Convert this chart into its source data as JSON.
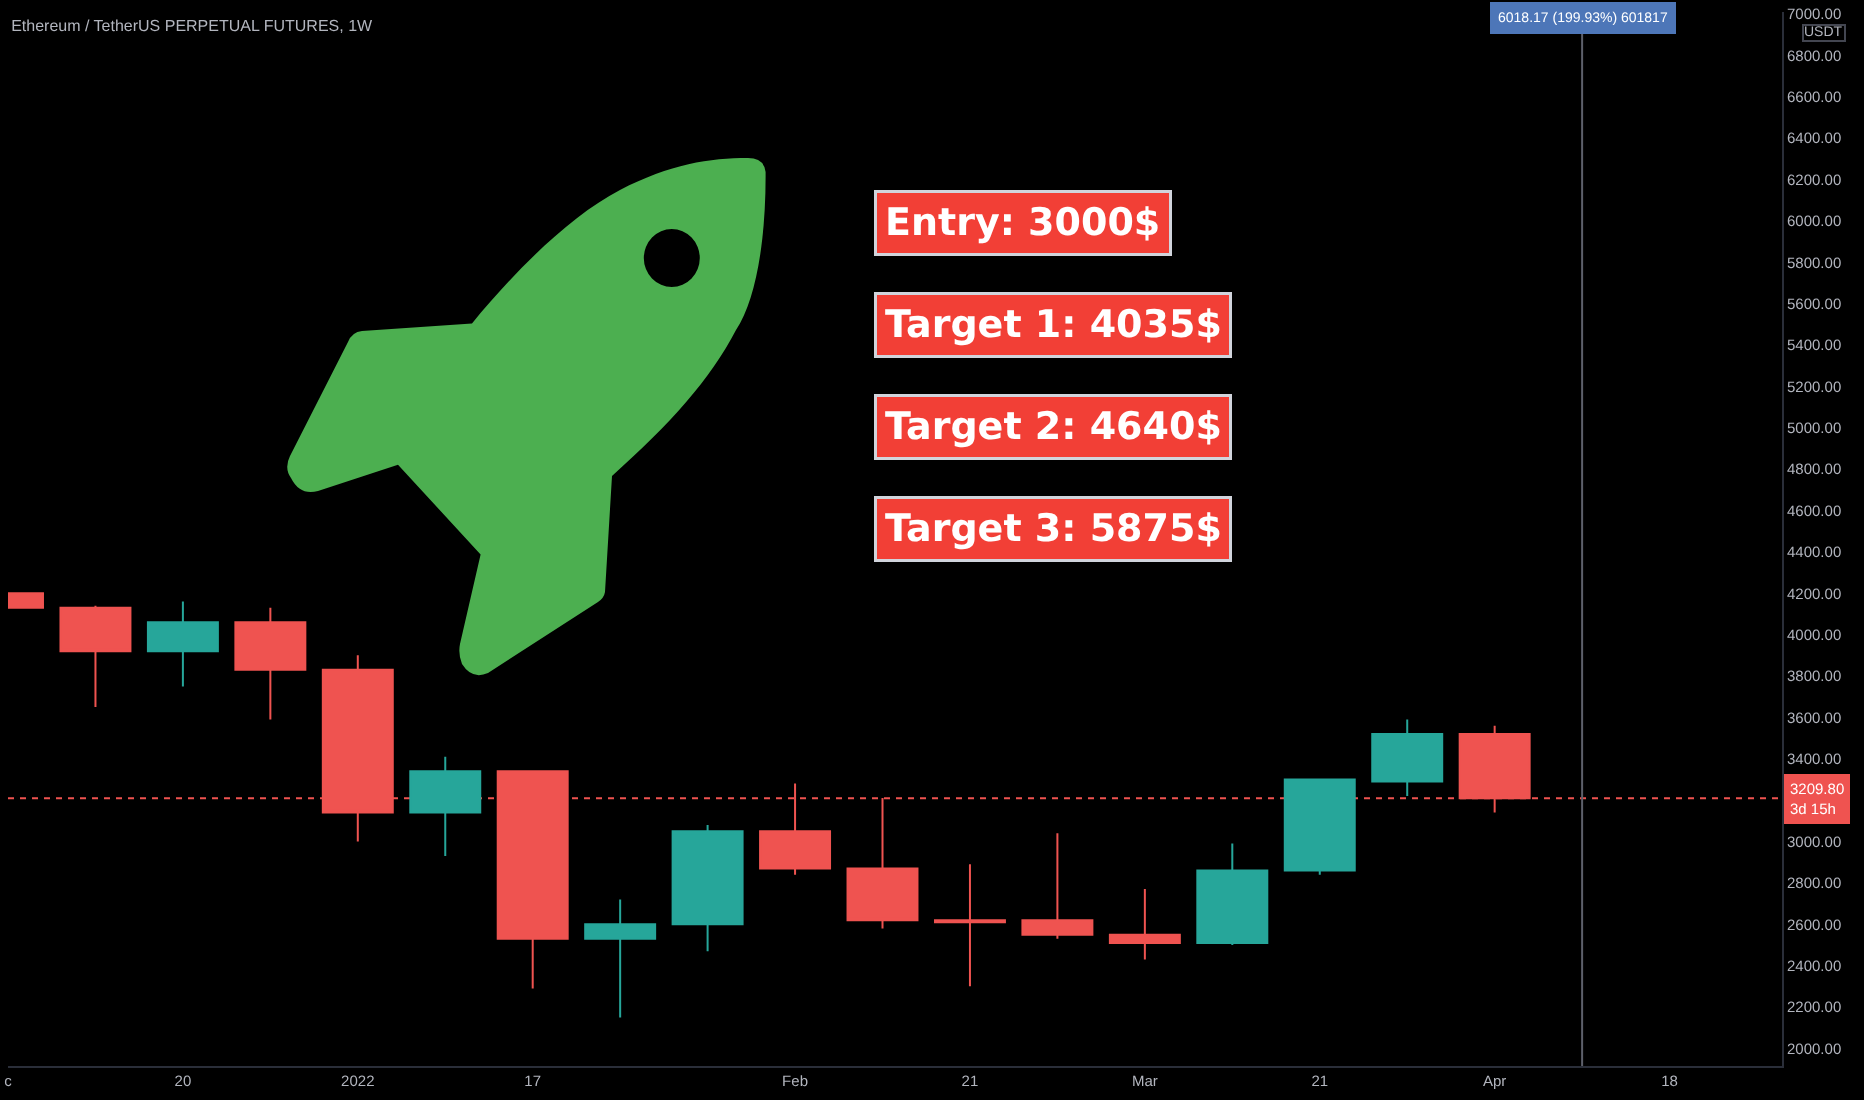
{
  "chart_data": {
    "type": "candlestick",
    "title": "Ethereum / TetherUS PERPETUAL FUTURES, 1W",
    "ylabel": "USDT",
    "x": [
      "2021-12-06",
      "2021-12-13",
      "2021-12-20",
      "2021-12-27",
      "2022-01-03",
      "2022-01-10",
      "2022-01-17",
      "2022-01-24",
      "2022-01-31",
      "2022-02-07",
      "2022-02-14",
      "2022-02-21",
      "2022-02-28",
      "2022-03-07",
      "2022-03-14",
      "2022-03-21",
      "2022-03-28",
      "2022-04-04"
    ],
    "ohlc": [
      [
        4200,
        4200,
        4130,
        4130
      ],
      [
        4130,
        4140,
        3650,
        3920
      ],
      [
        3920,
        4160,
        3750,
        4060
      ],
      [
        4060,
        4130,
        3590,
        3830
      ],
      [
        3830,
        3900,
        3000,
        3140
      ],
      [
        3140,
        3410,
        2930,
        3340
      ],
      [
        3340,
        3340,
        2290,
        2530
      ],
      [
        2530,
        2720,
        2150,
        2600
      ],
      [
        2600,
        3080,
        2470,
        3050
      ],
      [
        3050,
        3280,
        2840,
        2870
      ],
      [
        2870,
        3210,
        2580,
        2620
      ],
      [
        2620,
        2890,
        2300,
        2610
      ],
      [
        2620,
        3040,
        2530,
        2550
      ],
      [
        2550,
        2770,
        2430,
        2510
      ],
      [
        2510,
        2990,
        2500,
        2860
      ],
      [
        2860,
        3300,
        2840,
        3300
      ],
      [
        3290,
        3590,
        3220,
        3520
      ],
      [
        3520,
        3560,
        3140,
        3209.8
      ]
    ],
    "colors": [
      "#ef5350",
      "#ef5350",
      "#26a69a",
      "#ef5350",
      "#ef5350",
      "#26a69a",
      "#ef5350",
      "#26a69a",
      "#26a69a",
      "#ef5350",
      "#ef5350",
      "#ef5350",
      "#ef5350",
      "#ef5350",
      "#26a69a",
      "#26a69a",
      "#26a69a",
      "#ef5350"
    ],
    "xlim": [
      "2021-12-06",
      "2022-04-27"
    ],
    "ylim": [
      1915,
      7010
    ],
    "xticks": [
      {
        "value": "2021-12-06",
        "label": "c"
      },
      {
        "value": "2021-12-20",
        "label": "20"
      },
      {
        "value": "2022-01-03",
        "label": "2022"
      },
      {
        "value": "2022-01-17",
        "label": "17"
      },
      {
        "value": "2022-02-07",
        "label": "Feb"
      },
      {
        "value": "2022-02-21",
        "label": "21"
      },
      {
        "value": "2022-03-07",
        "label": "Mar"
      },
      {
        "value": "2022-03-21",
        "label": "21"
      },
      {
        "value": "2022-04-04",
        "label": "Apr"
      },
      {
        "value": "2022-04-18",
        "label": "18"
      }
    ],
    "yticks": [
      {
        "value": 2000,
        "label": "2000.00"
      },
      {
        "value": 2200,
        "label": "2200.00"
      },
      {
        "value": 2400,
        "label": "2400.00"
      },
      {
        "value": 2600,
        "label": "2600.00"
      },
      {
        "value": 2800,
        "label": "2800.00"
      },
      {
        "value": 3000,
        "label": "3000.00"
      },
      {
        "value": 3400,
        "label": "3400.00"
      },
      {
        "value": 3600,
        "label": "3600.00"
      },
      {
        "value": 3800,
        "label": "3800.00"
      },
      {
        "value": 4000,
        "label": "4000.00"
      },
      {
        "value": 4200,
        "label": "4200.00"
      },
      {
        "value": 4400,
        "label": "4400.00"
      },
      {
        "value": 4600,
        "label": "4600.00"
      },
      {
        "value": 4800,
        "label": "4800.00"
      },
      {
        "value": 5000,
        "label": "5000.00"
      },
      {
        "value": 5200,
        "label": "5200.00"
      },
      {
        "value": 5400,
        "label": "5400.00"
      },
      {
        "value": 5600,
        "label": "5600.00"
      },
      {
        "value": 5800,
        "label": "5800.00"
      },
      {
        "value": 6000,
        "label": "6000.00"
      },
      {
        "value": 6200,
        "label": "6200.00"
      },
      {
        "value": 6400,
        "label": "6400.00"
      },
      {
        "value": 6600,
        "label": "6600.00"
      },
      {
        "value": 6800,
        "label": "6800.00"
      },
      {
        "value": 7000,
        "label": "7000.00"
      }
    ],
    "ref_lines": [
      {
        "axis": "y",
        "value": 3209.8,
        "label": "3209.80\n3d 15h",
        "color": "#ef5350",
        "line_style": "dotted"
      },
      {
        "axis": "x",
        "value": "2022-04-11",
        "label": "6018.17 (199.93%) 601817",
        "color": "#5d606b",
        "line_style": "solid"
      }
    ],
    "annotations": [
      "Entry: 3000$",
      "Target 1: 4035$",
      "Target 2: 4640$",
      "Target 3: 5875$"
    ]
  }
}
